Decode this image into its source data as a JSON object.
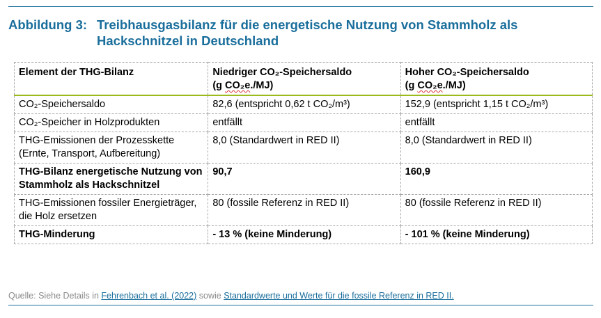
{
  "title": {
    "label": "Abbildung 3:",
    "text": "Treibhausgasbilanz für die energetische Nutzung von Stammholz als Hackschnitzel in Deutschland"
  },
  "table": {
    "headers": [
      {
        "line1": "Element der THG-Bilanz",
        "line2": ""
      },
      {
        "line1": "Niedriger CO₂-Speichersaldo",
        "line2a": "(g ",
        "line2b": "CO₂e",
        "line2c": "./MJ)"
      },
      {
        "line1": "Hoher CO₂-Speichersaldo",
        "line2a": "(g ",
        "line2b": "CO₂e",
        "line2c": "./MJ)"
      }
    ],
    "rows": [
      {
        "bold": false,
        "cells": [
          "CO₂-Speichersaldo",
          "82,6 (entspricht 0,62 t CO₂/m³)",
          "152,9 (entspricht 1,15 t CO₂/m³)"
        ]
      },
      {
        "bold": false,
        "cells": [
          "CO₂-Speicher in Holzprodukten",
          "entfällt",
          "entfällt"
        ]
      },
      {
        "bold": false,
        "cells": [
          "THG-Emissionen der Prozesskette (Ernte, Transport, Aufbereitung)",
          "8,0 (Standardwert in RED II)",
          "8,0 (Standardwert in RED II)"
        ]
      },
      {
        "bold": true,
        "cells": [
          "THG-Bilanz energetische Nutzung von Stammholz als Hackschnitzel",
          "90,7",
          "160,9"
        ]
      },
      {
        "bold": false,
        "cells": [
          "THG-Emissionen fossiler Energieträger, die Holz ersetzen",
          "80 (fossile Referenz in RED II)",
          "80 (fossile Referenz in RED II)"
        ]
      },
      {
        "bold": true,
        "cells": [
          "THG-Minderung",
          "- 13 % (keine Minderung)",
          "- 101 % (keine Minderung)"
        ]
      }
    ]
  },
  "source": {
    "prefix": "Quelle: Siehe Details in ",
    "link1": "Fehrenbach et al. (2022)",
    "middle": " sowie ",
    "link2": "Standardwerte und Werte für die fossile Referenz in RED II."
  },
  "colors": {
    "accent": "#1a6e9c",
    "header_rule": "#9bbb1d",
    "grid": "#a8a8a8",
    "source_text": "#8a8a8a"
  }
}
